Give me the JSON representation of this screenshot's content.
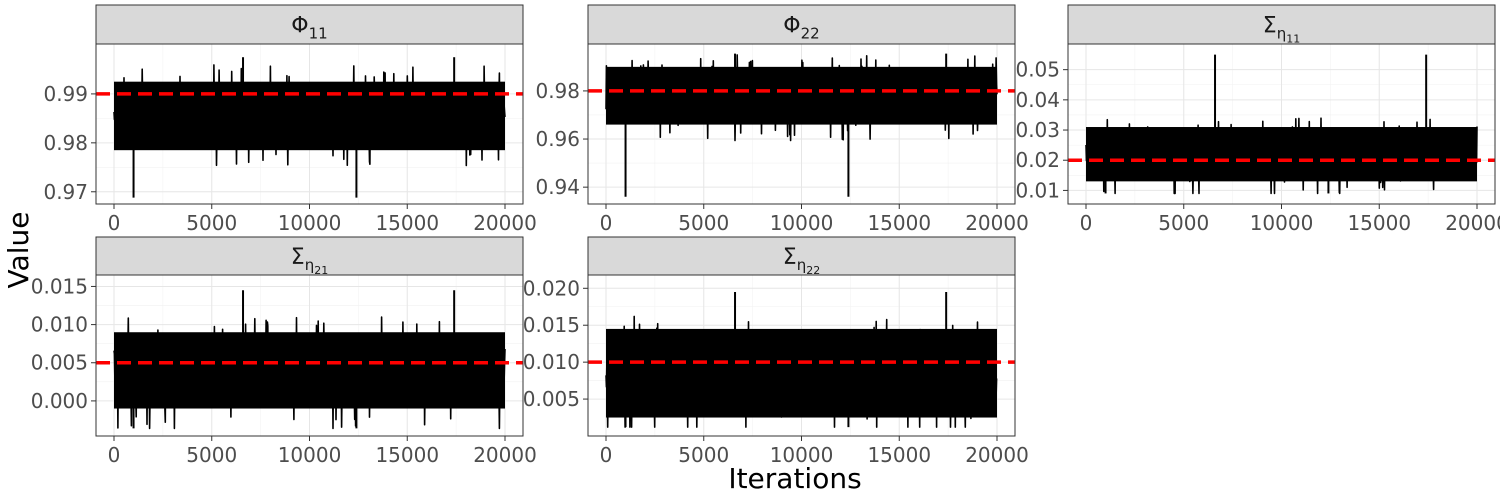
{
  "figure": {
    "ylabel": "Value",
    "xlabel": "Iterations",
    "truth_color": "#ff0000",
    "trace_color": "#000000",
    "strip_color": "#d9d9d9"
  },
  "chart_data": [
    {
      "type": "line",
      "panel": "Phi_11",
      "strip": {
        "base": "Φ",
        "sub": "11",
        "subsub": ""
      },
      "xlim": [
        0,
        20000
      ],
      "ylim": [
        0.9675,
        1.0002
      ],
      "xticks": [
        "0",
        "5000",
        "10000",
        "15000",
        "20000"
      ],
      "xtick_values": [
        0,
        5000,
        10000,
        15000,
        20000
      ],
      "yticks": [
        "0.97",
        "0.98",
        "0.99"
      ],
      "ytick_values": [
        0.97,
        0.98,
        0.99
      ],
      "truth": 0.99,
      "trace": {
        "iterations": 20000,
        "center": 0.9855,
        "lower": 0.9785,
        "upper": 0.9925,
        "min": 0.9688,
        "max": 0.9975
      }
    },
    {
      "type": "line",
      "panel": "Phi_22",
      "strip": {
        "base": "Φ",
        "sub": "22",
        "subsub": ""
      },
      "xlim": [
        0,
        20000
      ],
      "ylim": [
        0.933,
        0.9995
      ],
      "xticks": [
        "0",
        "5000",
        "10000",
        "15000",
        "20000"
      ],
      "xtick_values": [
        0,
        5000,
        10000,
        15000,
        20000
      ],
      "yticks": [
        "0.94",
        "0.96",
        "0.98"
      ],
      "ytick_values": [
        0.94,
        0.96,
        0.98
      ],
      "truth": 0.98,
      "trace": {
        "iterations": 20000,
        "center": 0.977,
        "lower": 0.966,
        "upper": 0.99,
        "min": 0.936,
        "max": 0.9955
      }
    },
    {
      "type": "line",
      "panel": "Sigma_eta11",
      "strip": {
        "base": "Σ",
        "sub": "η",
        "subsub": "11"
      },
      "xlim": [
        0,
        20000
      ],
      "ylim": [
        0.0055,
        0.0585
      ],
      "xticks": [
        "0",
        "5000",
        "10000",
        "15000",
        "20000"
      ],
      "xtick_values": [
        0,
        5000,
        10000,
        15000,
        20000
      ],
      "yticks": [
        "0.01",
        "0.02",
        "0.03",
        "0.04",
        "0.05"
      ],
      "ytick_values": [
        0.01,
        0.02,
        0.03,
        0.04,
        0.05
      ],
      "truth": 0.02,
      "trace": {
        "iterations": 20000,
        "center": 0.021,
        "lower": 0.013,
        "upper": 0.031,
        "min": 0.009,
        "max": 0.055
      }
    },
    {
      "type": "line",
      "panel": "Sigma_eta21",
      "strip": {
        "base": "Σ",
        "sub": "η",
        "subsub": "21"
      },
      "xlim": [
        0,
        20000
      ],
      "ylim": [
        -0.0046,
        0.0165
      ],
      "xticks": [
        "0",
        "5000",
        "10000",
        "15000",
        "20000"
      ],
      "xtick_values": [
        0,
        5000,
        10000,
        15000,
        20000
      ],
      "yticks": [
        "0.000",
        "0.005",
        "0.010",
        "0.015"
      ],
      "ytick_values": [
        0.0,
        0.005,
        0.01,
        0.015
      ],
      "truth": 0.005,
      "trace": {
        "iterations": 20000,
        "center": 0.0035,
        "lower": -0.001,
        "upper": 0.009,
        "min": -0.0036,
        "max": 0.0145
      }
    },
    {
      "type": "line",
      "panel": "Sigma_eta22",
      "strip": {
        "base": "Σ",
        "sub": "η",
        "subsub": "22"
      },
      "xlim": [
        0,
        20000
      ],
      "ylim": [
        0.0,
        0.0218
      ],
      "xticks": [
        "0",
        "5000",
        "10000",
        "15000",
        "20000"
      ],
      "xtick_values": [
        0,
        5000,
        10000,
        15000,
        20000
      ],
      "yticks": [
        "0.005",
        "0.010",
        "0.015",
        "0.020"
      ],
      "ytick_values": [
        0.005,
        0.01,
        0.015,
        0.02
      ],
      "truth": 0.01,
      "trace": {
        "iterations": 20000,
        "center": 0.0075,
        "lower": 0.0025,
        "upper": 0.0145,
        "min": 0.0012,
        "max": 0.0195
      }
    }
  ]
}
